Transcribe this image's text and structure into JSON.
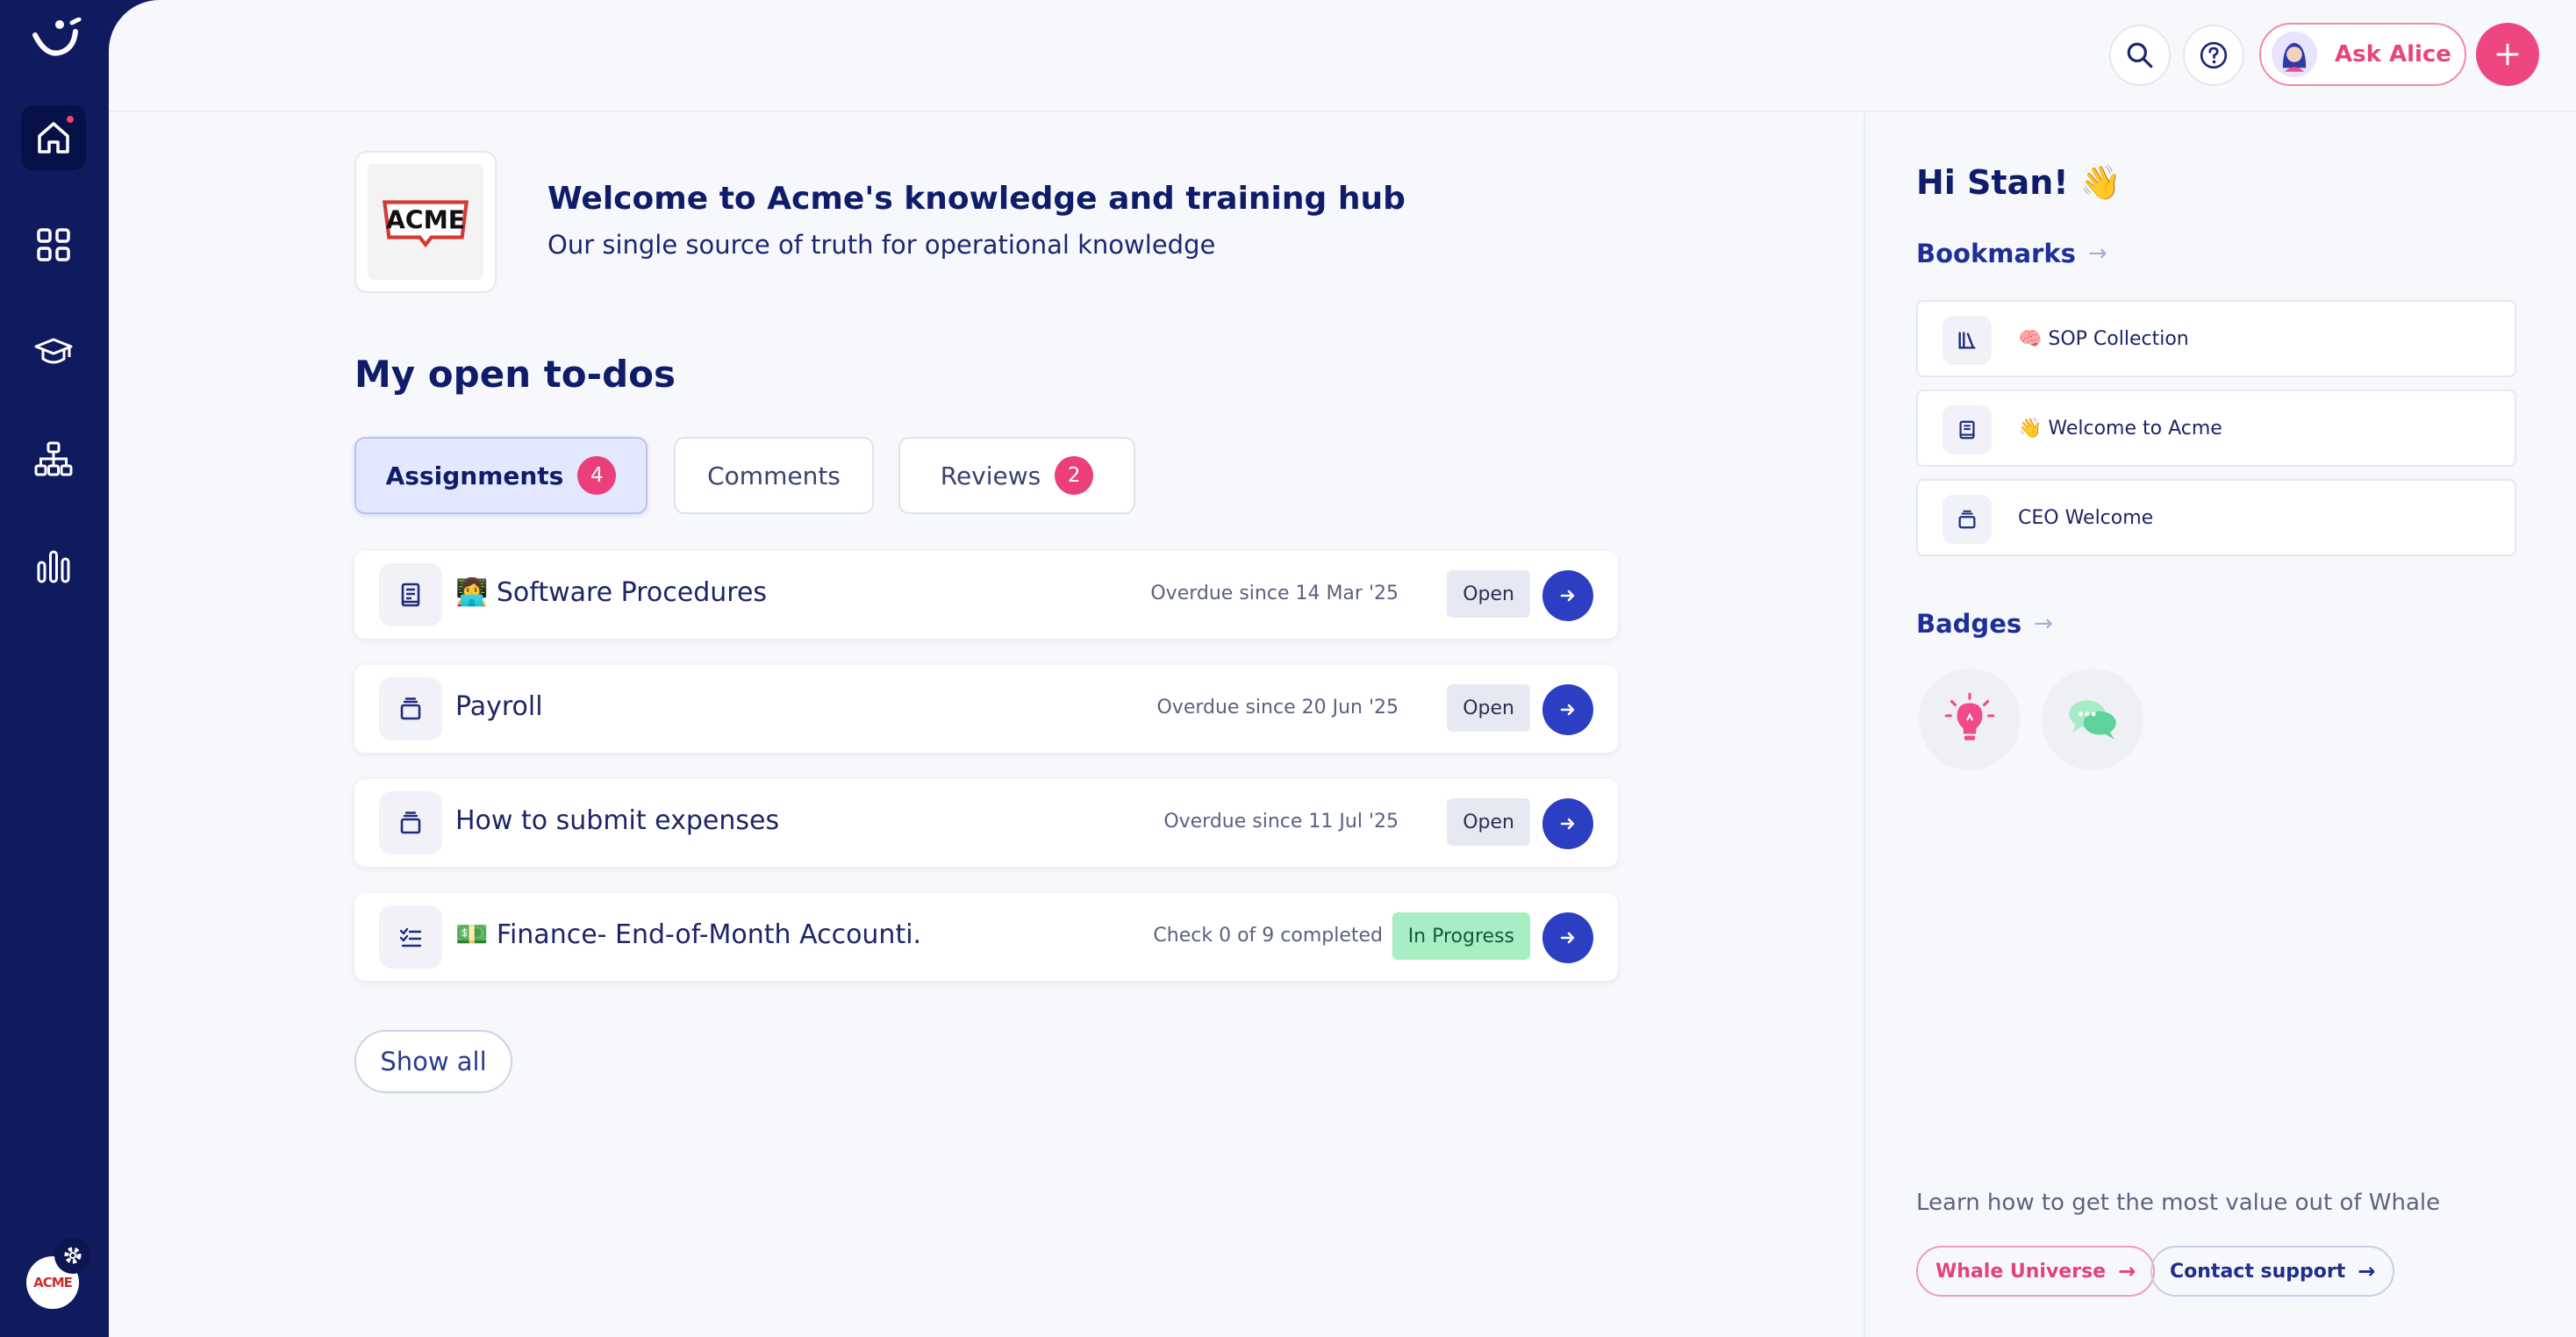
{
  "sidebar": {
    "items": [
      {
        "name": "home",
        "icon": "home-icon",
        "active": true
      },
      {
        "name": "apps",
        "icon": "grid-icon"
      },
      {
        "name": "training",
        "icon": "graduation-cap-icon"
      },
      {
        "name": "org-chart",
        "icon": "org-chart-icon"
      },
      {
        "name": "analytics",
        "icon": "bar-chart-icon"
      }
    ],
    "org_avatar_text": "ACME"
  },
  "header": {
    "ask_label": "Ask Alice"
  },
  "hub": {
    "logo_text": "ACME",
    "title": "Welcome to Acme's knowledge and training hub",
    "subtitle": "Our single source of truth for operational knowledge"
  },
  "todos": {
    "title": "My open to-dos",
    "tabs": [
      {
        "label": "Assignments",
        "count": "4"
      },
      {
        "label": "Comments"
      },
      {
        "label": "Reviews",
        "count": "2"
      }
    ],
    "items": [
      {
        "icon": "document-icon",
        "title": "👩‍💻 Software Procedures",
        "meta": "Overdue since 14 Mar '25",
        "status": "Open"
      },
      {
        "icon": "stack-icon",
        "title": "Payroll",
        "meta": "Overdue since 20 Jun '25",
        "status": "Open"
      },
      {
        "icon": "stack-icon",
        "title": "How to submit expenses",
        "meta": "Overdue since 11 Jul '25",
        "status": "Open"
      },
      {
        "icon": "checklist-icon",
        "title": "💵 Finance- End-of-Month Accounti.",
        "meta": "Check 0 of 9 completed",
        "status": "In Progress"
      }
    ],
    "show_all": "Show all"
  },
  "right": {
    "greeting": "Hi Stan! 👋",
    "bookmarks_title": "Bookmarks",
    "bookmarks": [
      {
        "icon": "library-icon",
        "label": "🧠 SOP Collection"
      },
      {
        "icon": "document-icon",
        "label": "👋 Welcome to Acme"
      },
      {
        "icon": "stack-icon",
        "label": "CEO Welcome"
      }
    ],
    "badges_title": "Badges",
    "badges": [
      {
        "icon": "lightbulb-icon",
        "color": "#ef4b8a"
      },
      {
        "icon": "chat-bubbles-icon",
        "color": "#5fd19a"
      }
    ],
    "footer_text": "Learn how to get the most value out of Whale",
    "links": [
      {
        "label": "Whale Universe"
      },
      {
        "label": "Contact support"
      }
    ]
  }
}
